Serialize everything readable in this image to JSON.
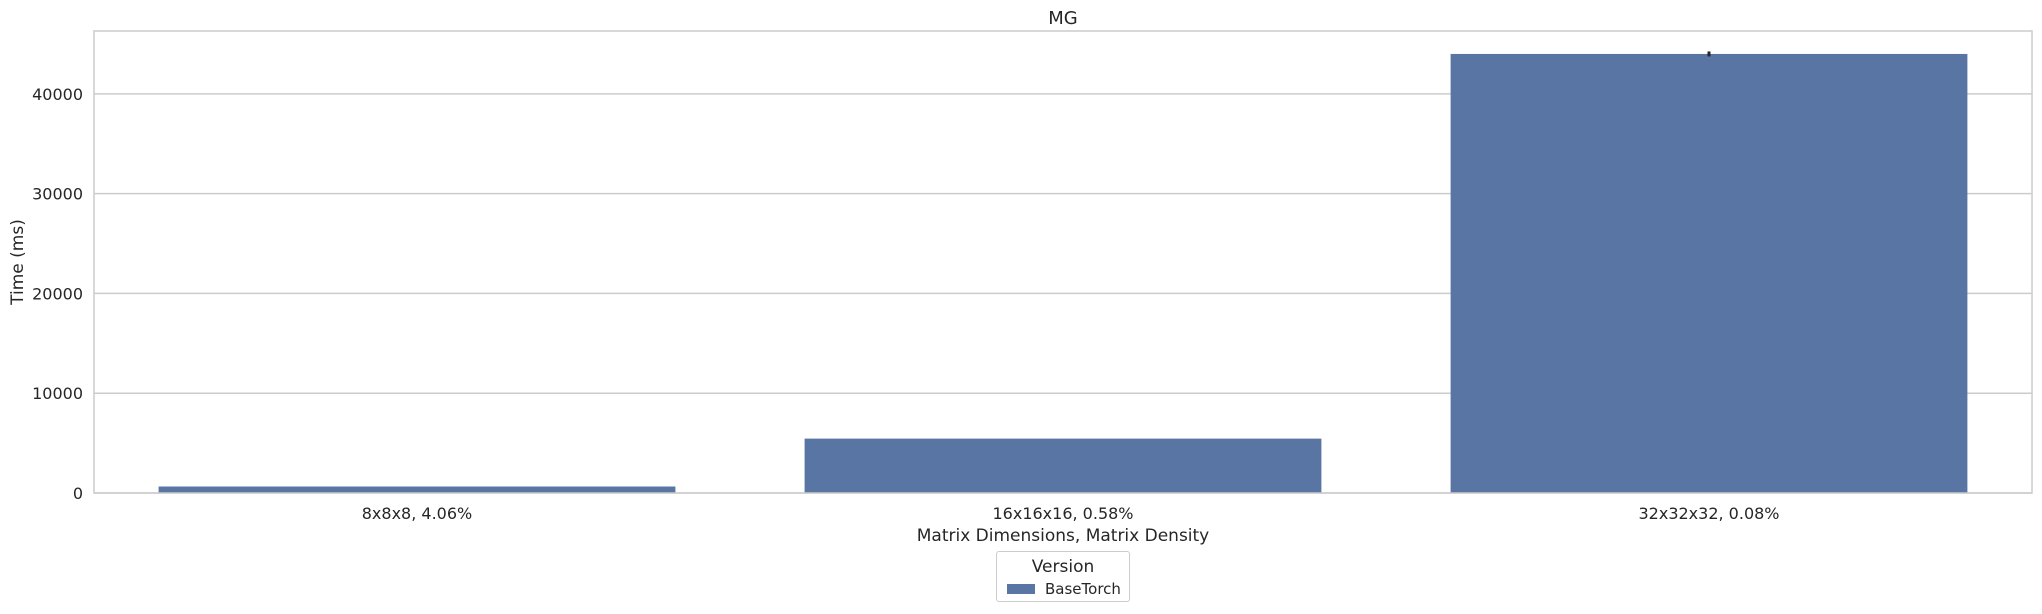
{
  "chart_data": {
    "type": "bar",
    "title": "MG",
    "xlabel": "Matrix Dimensions, Matrix Density",
    "ylabel": "Time (ms)",
    "categories": [
      "8x8x8, 4.06%",
      "16x16x16, 0.58%",
      "32x32x32, 0.08%"
    ],
    "series": [
      {
        "name": "BaseTorch",
        "values": [
          650,
          5450,
          44000
        ],
        "error": [
          null,
          null,
          250
        ],
        "color": "#5975a4"
      }
    ],
    "ylim": [
      0,
      46300
    ],
    "yticks": [
      0,
      10000,
      20000,
      30000,
      40000
    ],
    "grid": true,
    "legend": {
      "title": "Version",
      "placement": "bottom-center, below plot"
    }
  },
  "colors": {
    "bar": "#5975a4",
    "grid": "#cccccc",
    "axis_frame": "#cccccc",
    "text": "#262626",
    "error_bar": "#262626"
  }
}
